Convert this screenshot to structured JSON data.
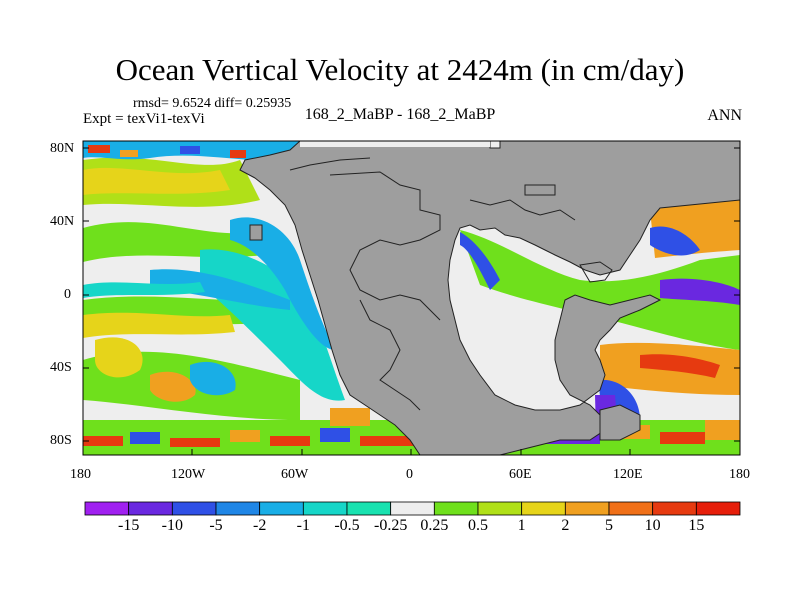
{
  "title": "Ocean Vertical Velocity at 2424m (in cm/day)",
  "stats_text": "rmsd= 9.6524 diff= 0.25935",
  "expt_text": "Expt = texVi1-texVi",
  "center_label": "168_2_MaBP - 168_2_MaBP",
  "season": "ANN",
  "lat_ticks": [
    "80N",
    "40N",
    "0",
    "40S",
    "80S"
  ],
  "lon_ticks": [
    "180",
    "120W",
    "60W",
    "0",
    "60E",
    "120E",
    "180"
  ],
  "colorbar": {
    "labels": [
      "-15",
      "-10",
      "-5",
      "-2",
      "-1",
      "-0.5",
      "-0.25",
      "0.25",
      "0.5",
      "1",
      "2",
      "5",
      "10",
      "15"
    ],
    "colors": [
      "#a020f0",
      "#6a28e0",
      "#2f50e6",
      "#1f86e6",
      "#19aee6",
      "#16d6c8",
      "#19e2b0",
      "#eeeeee",
      "#6fe01c",
      "#b0e018",
      "#e6d41a",
      "#f0a020",
      "#f07018",
      "#e63a10",
      "#e61e0a"
    ],
    "land_color": "#9e9e9e"
  }
}
